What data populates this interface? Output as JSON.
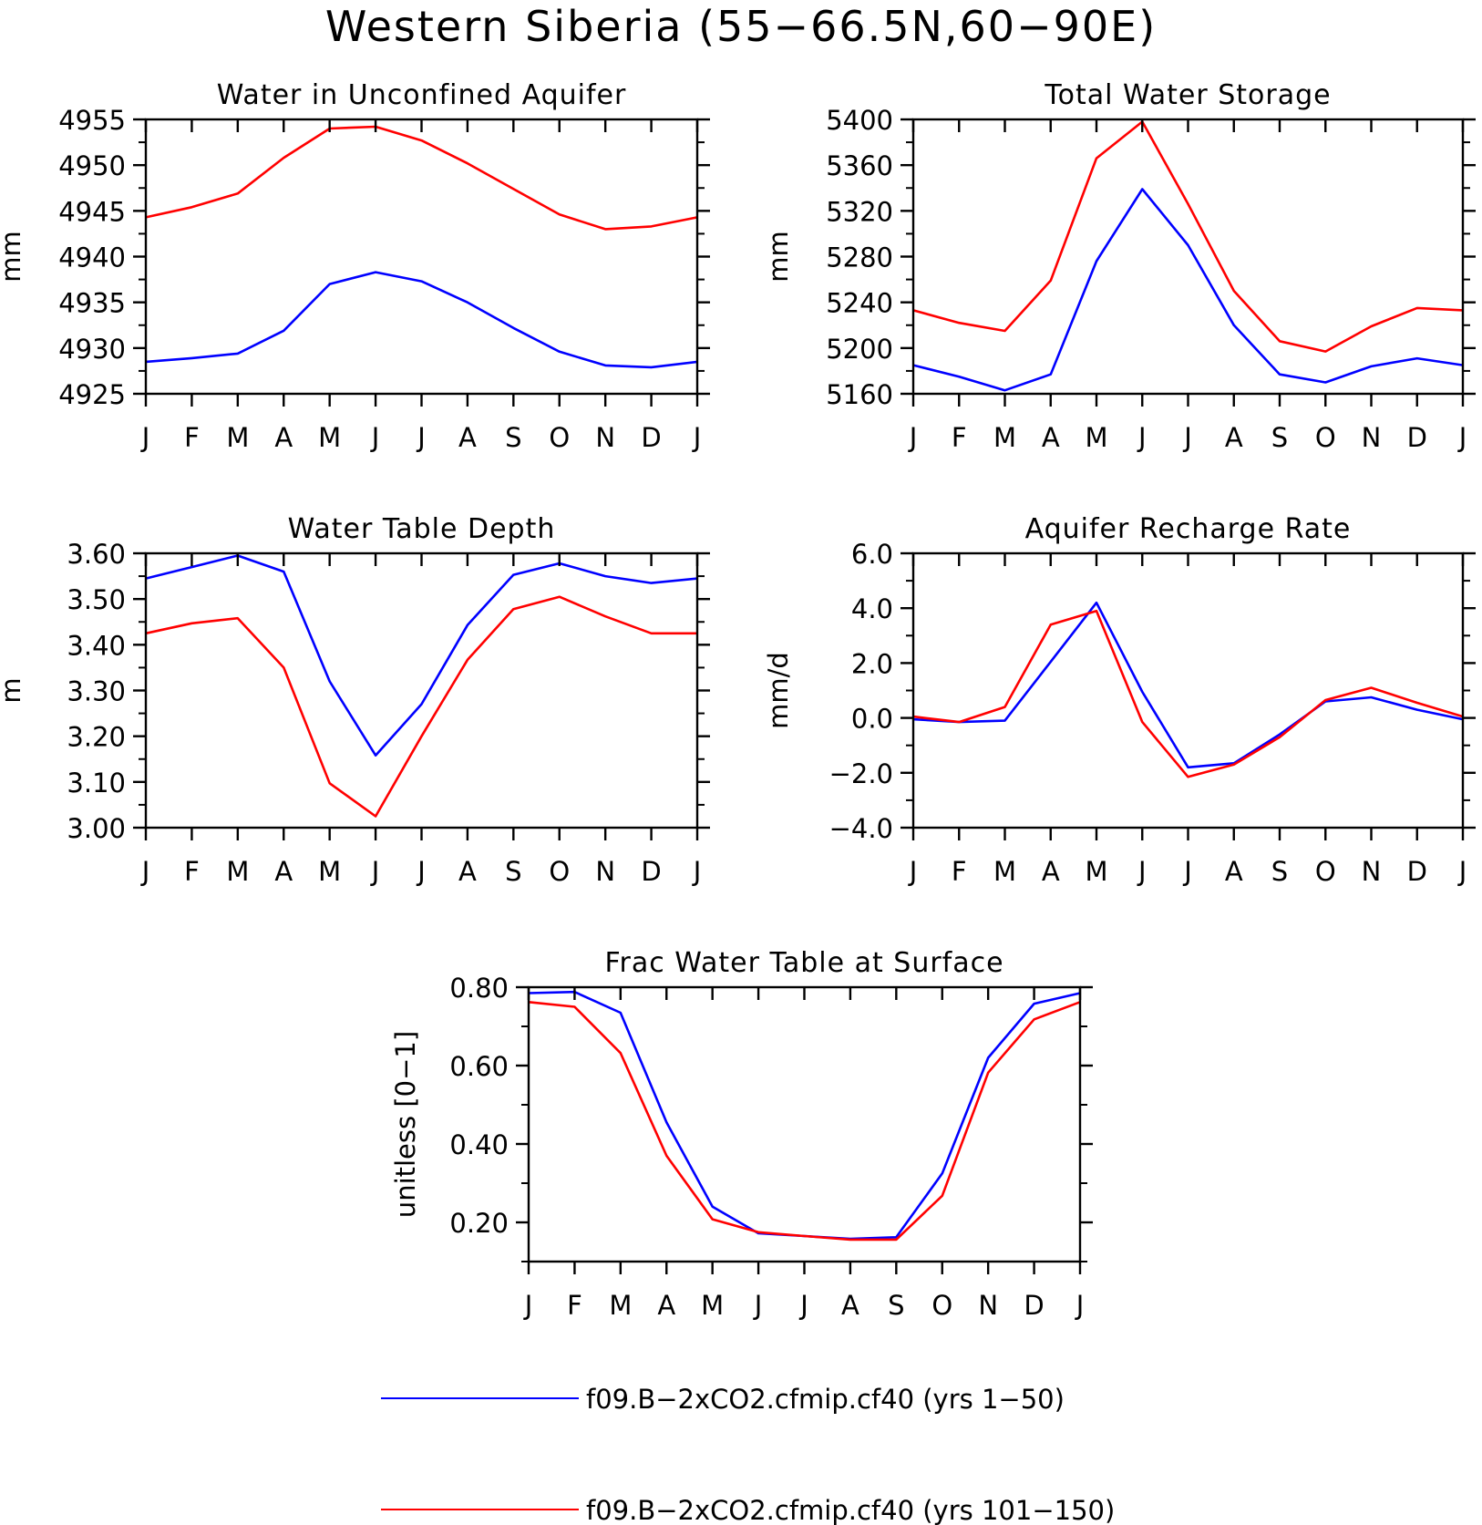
{
  "figure": {
    "title": "Western Siberia (55−66.5N,60−90E)",
    "legend": [
      {
        "label": "f09.B−2xCO2.cfmip.cf40 (yrs 1−50)",
        "color": "#0000ff"
      },
      {
        "label": "f09.B−2xCO2.cfmip.cf40 (yrs 101−150)",
        "color": "#ff0000"
      }
    ]
  },
  "chart_data": [
    {
      "type": "line",
      "title": "Water in Unconfined Aquifer",
      "ylabel": "mm",
      "categories": [
        "J",
        "F",
        "M",
        "A",
        "M",
        "J",
        "J",
        "A",
        "S",
        "O",
        "N",
        "D",
        "J"
      ],
      "ylim": [
        4925,
        4955
      ],
      "yticks": [
        4925,
        4930,
        4935,
        4940,
        4945,
        4950,
        4955
      ],
      "ytick_labels": [
        "4925",
        "4930",
        "4935",
        "4940",
        "4945",
        "4950",
        "4955"
      ],
      "series": [
        {
          "color": "#0000ff",
          "values": [
            4928.5,
            4928.9,
            4929.4,
            4931.9,
            4937.0,
            4938.3,
            4937.3,
            4935.0,
            4932.2,
            4929.6,
            4928.1,
            4927.9,
            4928.5
          ]
        },
        {
          "color": "#ff0000",
          "values": [
            4944.3,
            4945.4,
            4946.9,
            4950.8,
            4954.0,
            4954.2,
            4952.7,
            4950.2,
            4947.4,
            4944.6,
            4943.0,
            4943.3,
            4944.3
          ]
        }
      ]
    },
    {
      "type": "line",
      "title": "Total Water Storage",
      "ylabel": "mm",
      "categories": [
        "J",
        "F",
        "M",
        "A",
        "M",
        "J",
        "J",
        "A",
        "S",
        "O",
        "N",
        "D",
        "J"
      ],
      "ylim": [
        5160,
        5400
      ],
      "yticks": [
        5160,
        5200,
        5240,
        5280,
        5320,
        5360,
        5400
      ],
      "ytick_labels": [
        "5160",
        "5200",
        "5240",
        "5280",
        "5320",
        "5360",
        "5400"
      ],
      "series": [
        {
          "color": "#0000ff",
          "values": [
            5185,
            5175,
            5163,
            5177,
            5276,
            5339,
            5290,
            5220,
            5177,
            5170,
            5184,
            5191,
            5185
          ]
        },
        {
          "color": "#ff0000",
          "values": [
            5233,
            5222,
            5215,
            5259,
            5366,
            5398,
            5326,
            5250,
            5206,
            5197,
            5219,
            5235,
            5233
          ]
        }
      ]
    },
    {
      "type": "line",
      "title": "Water Table Depth",
      "ylabel": "m",
      "categories": [
        "J",
        "F",
        "M",
        "A",
        "M",
        "J",
        "J",
        "A",
        "S",
        "O",
        "N",
        "D",
        "J"
      ],
      "ylim": [
        3.0,
        3.6
      ],
      "yticks": [
        3.0,
        3.1,
        3.2,
        3.3,
        3.4,
        3.5,
        3.6
      ],
      "ytick_labels": [
        "3.00",
        "3.10",
        "3.20",
        "3.30",
        "3.40",
        "3.50",
        "3.60"
      ],
      "series": [
        {
          "color": "#0000ff",
          "values": [
            3.545,
            3.57,
            3.595,
            3.56,
            3.32,
            3.158,
            3.27,
            3.443,
            3.553,
            3.578,
            3.55,
            3.535,
            3.545
          ]
        },
        {
          "color": "#ff0000",
          "values": [
            3.425,
            3.447,
            3.458,
            3.35,
            3.097,
            3.025,
            3.2,
            3.367,
            3.478,
            3.505,
            3.462,
            3.425,
            3.425
          ]
        }
      ]
    },
    {
      "type": "line",
      "title": "Aquifer Recharge Rate",
      "ylabel": "mm/d",
      "categories": [
        "J",
        "F",
        "M",
        "A",
        "M",
        "J",
        "J",
        "A",
        "S",
        "O",
        "N",
        "D",
        "J"
      ],
      "ylim": [
        -4.0,
        6.0
      ],
      "yticks": [
        -4,
        -2,
        0,
        2,
        4,
        6
      ],
      "ytick_labels": [
        "−4.0",
        "−2.0",
        "0.0",
        "2.0",
        "4.0",
        "6.0"
      ],
      "series": [
        {
          "color": "#0000ff",
          "values": [
            -0.05,
            -0.15,
            -0.1,
            2.05,
            4.2,
            0.95,
            -1.8,
            -1.65,
            -0.6,
            0.6,
            0.75,
            0.3,
            -0.05
          ]
        },
        {
          "color": "#ff0000",
          "values": [
            0.05,
            -0.15,
            0.4,
            3.4,
            3.9,
            -0.15,
            -2.15,
            -1.7,
            -0.7,
            0.65,
            1.1,
            0.55,
            0.05
          ]
        }
      ]
    },
    {
      "type": "line",
      "title": "Frac Water Table at Surface",
      "ylabel": "unitless [0−1]",
      "categories": [
        "J",
        "F",
        "M",
        "A",
        "M",
        "J",
        "J",
        "A",
        "S",
        "O",
        "N",
        "D",
        "J"
      ],
      "ylim": [
        0.1,
        0.8
      ],
      "yticks": [
        0.2,
        0.4,
        0.6,
        0.8
      ],
      "ytick_labels": [
        "0.20",
        "0.40",
        "0.60",
        "0.80"
      ],
      "series": [
        {
          "color": "#0000ff",
          "values": [
            0.785,
            0.788,
            0.735,
            0.455,
            0.24,
            0.172,
            0.165,
            0.158,
            0.162,
            0.325,
            0.62,
            0.758,
            0.785
          ]
        },
        {
          "color": "#ff0000",
          "values": [
            0.762,
            0.75,
            0.632,
            0.37,
            0.208,
            0.175,
            0.165,
            0.156,
            0.156,
            0.268,
            0.582,
            0.718,
            0.762
          ]
        }
      ]
    }
  ]
}
